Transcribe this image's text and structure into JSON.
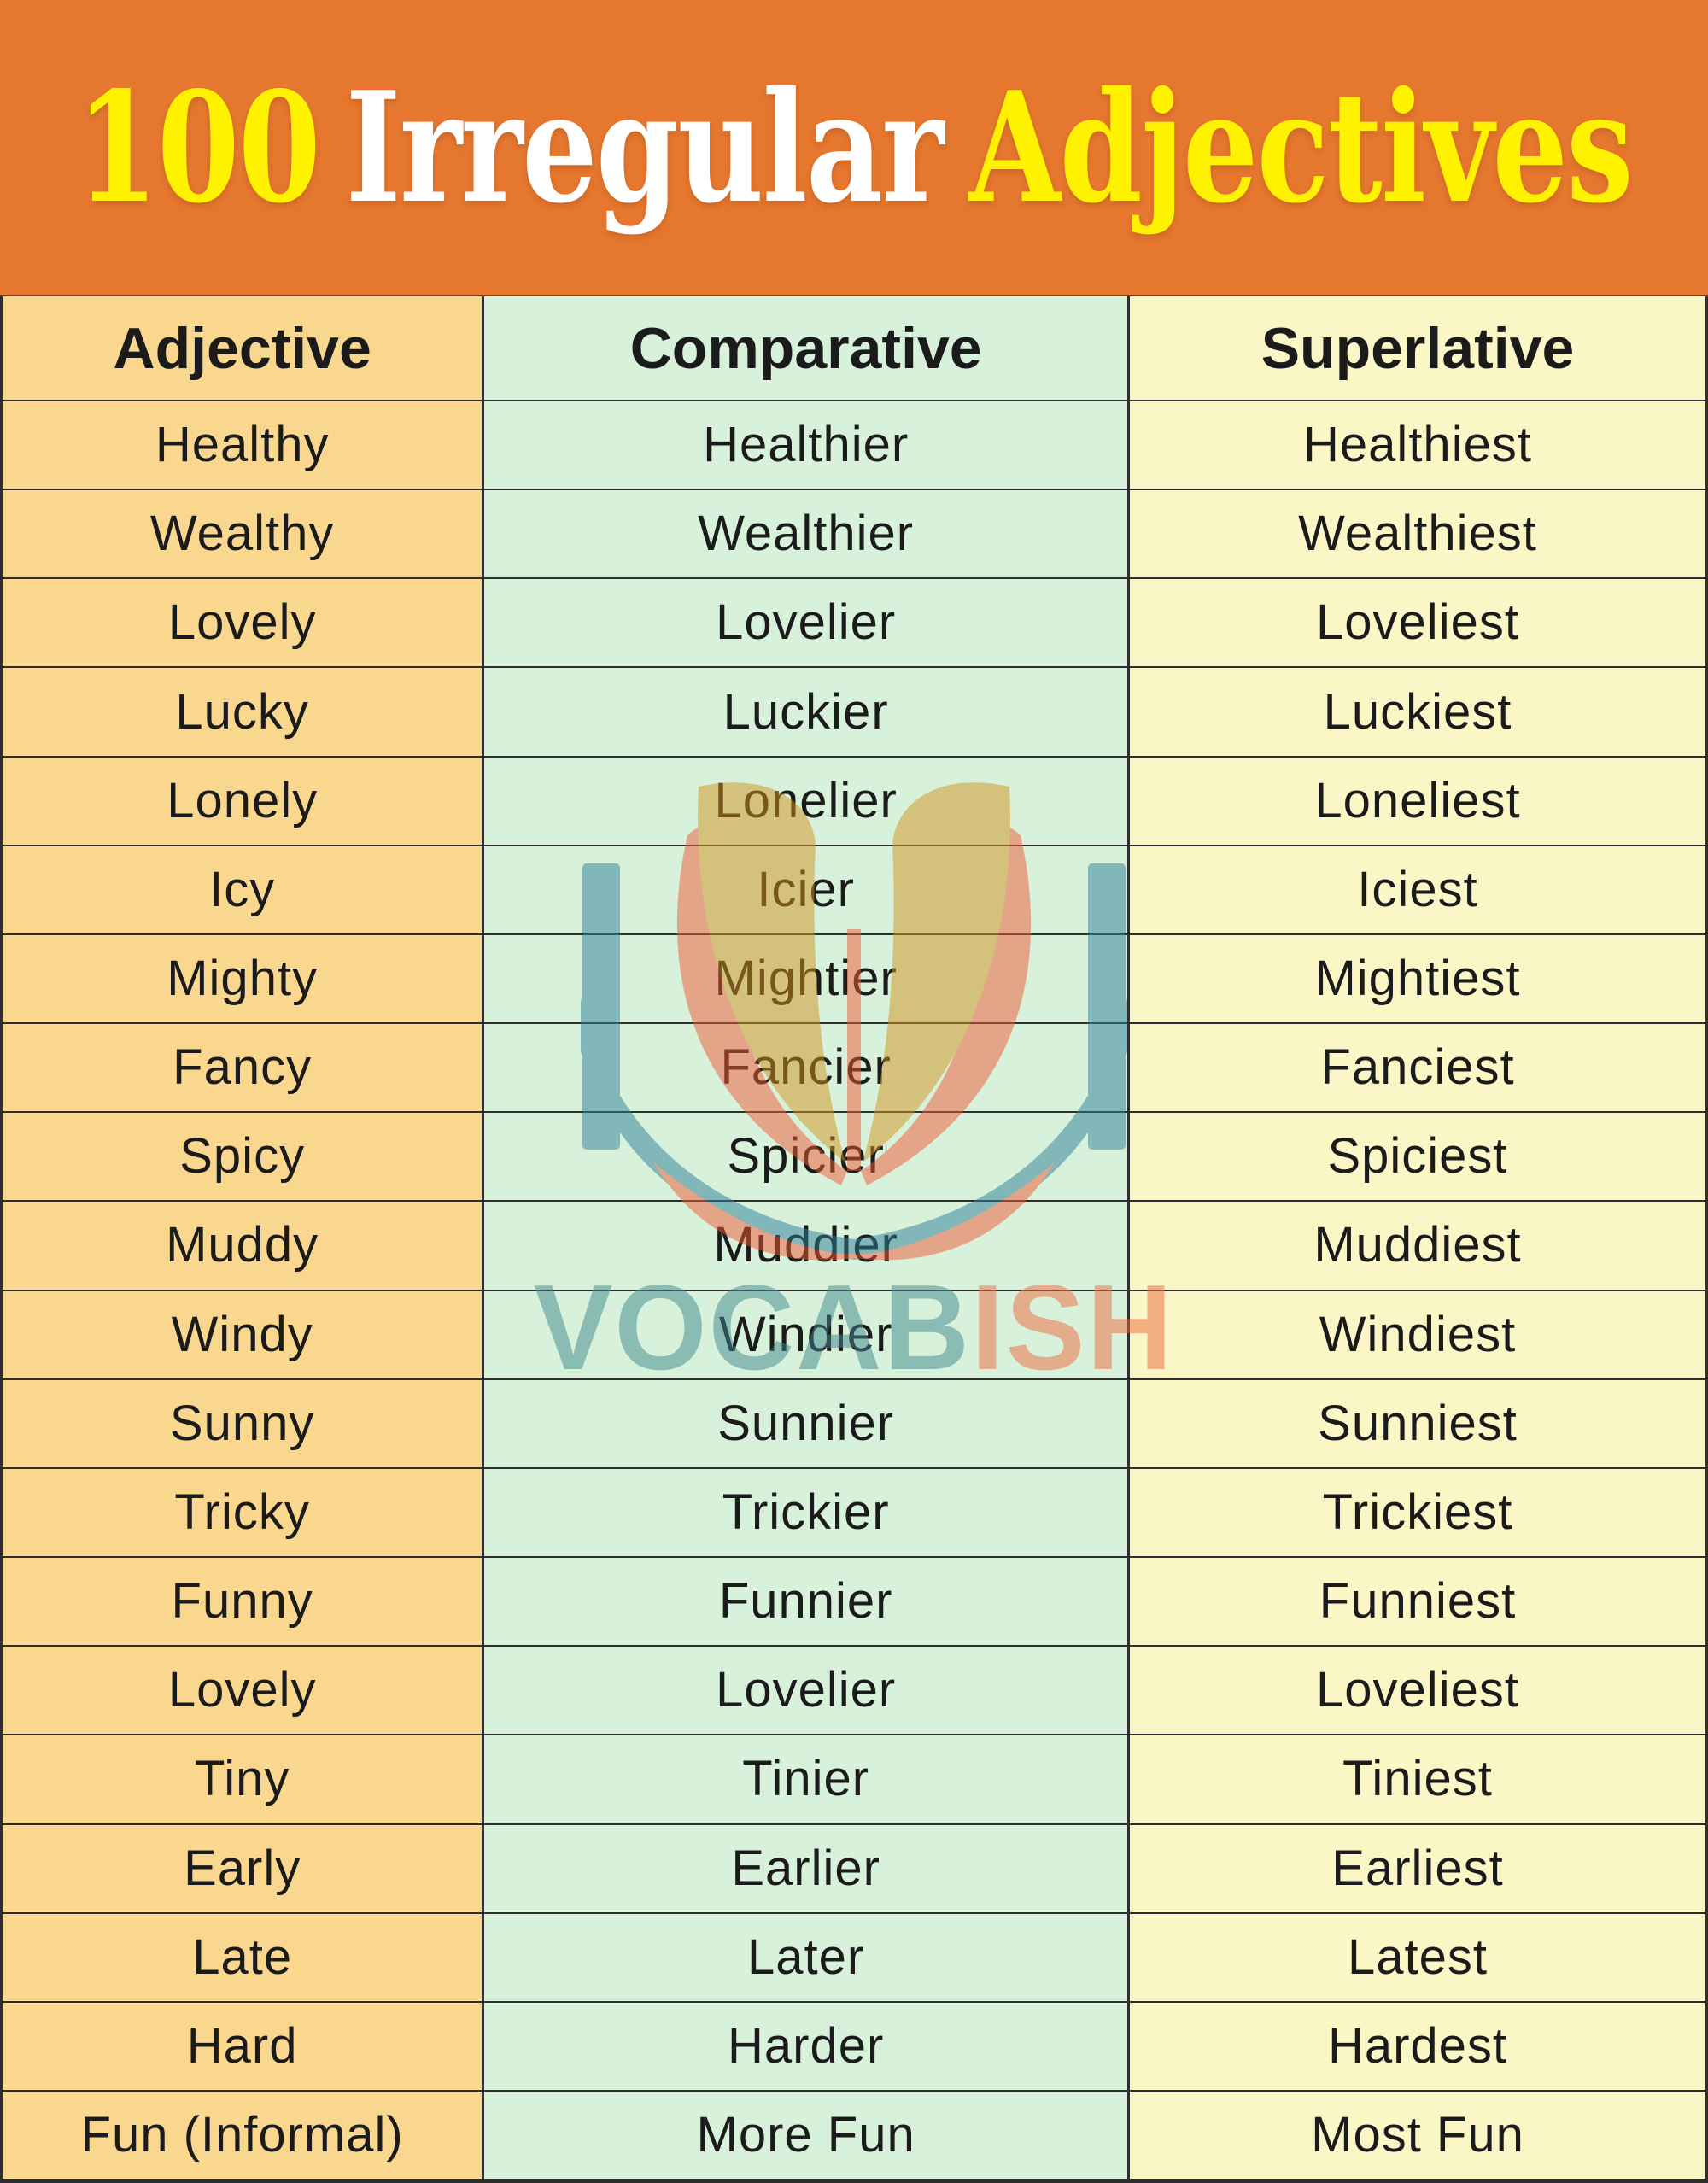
{
  "title": {
    "prefix": "100",
    "middle": "Irregular",
    "suffix": "Adjectives"
  },
  "colors": {
    "banner": "#E6772E",
    "title_yellow": "#FFF200",
    "title_white": "#FFFFFF",
    "col_adjective_bg": "#FAD78F",
    "col_comparative_bg": "#D7F1DB",
    "col_superlative_bg": "#FBF6C6",
    "border": "#2E2E2E",
    "text": "#1B1B1B",
    "watermark_teal": "#2E7F96",
    "watermark_gold": "#D39420",
    "watermark_red": "#EF5A36",
    "watermark_text_teal": "#40888E",
    "watermark_text_coral": "#EF6A3E"
  },
  "watermark": {
    "text_primary": "VOCAB",
    "text_secondary": "ISH"
  },
  "table": {
    "headers": [
      "Adjective",
      "Comparative",
      "Superlative"
    ],
    "rows": [
      [
        "Healthy",
        "Healthier",
        "Healthiest"
      ],
      [
        "Wealthy",
        "Wealthier",
        "Wealthiest"
      ],
      [
        "Lovely",
        "Lovelier",
        "Loveliest"
      ],
      [
        "Lucky",
        "Luckier",
        "Luckiest"
      ],
      [
        "Lonely",
        "Lonelier",
        "Loneliest"
      ],
      [
        "Icy",
        "Icier",
        "Iciest"
      ],
      [
        "Mighty",
        "Mightier",
        "Mightiest"
      ],
      [
        "Fancy",
        "Fancier",
        "Fanciest"
      ],
      [
        "Spicy",
        "Spicier",
        "Spiciest"
      ],
      [
        "Muddy",
        "Muddier",
        "Muddiest"
      ],
      [
        "Windy",
        "Windier",
        "Windiest"
      ],
      [
        "Sunny",
        "Sunnier",
        "Sunniest"
      ],
      [
        "Tricky",
        "Trickier",
        "Trickiest"
      ],
      [
        "Funny",
        "Funnier",
        "Funniest"
      ],
      [
        "Lovely",
        "Lovelier",
        "Loveliest"
      ],
      [
        "Tiny",
        "Tinier",
        "Tiniest"
      ],
      [
        "Early",
        "Earlier",
        "Earliest"
      ],
      [
        "Late",
        "Later",
        "Latest"
      ],
      [
        "Hard",
        "Harder",
        "Hardest"
      ],
      [
        "Fun (Informal)",
        "More Fun",
        "Most Fun"
      ]
    ]
  }
}
